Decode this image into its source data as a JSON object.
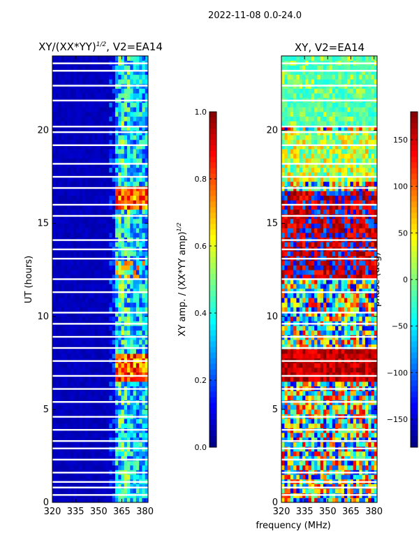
{
  "figure": {
    "suptitle": "2022-11-08 0.0-24.0",
    "shared_xlabel": "frequency (MHz)"
  },
  "chart_data": [
    {
      "type": "heatmap",
      "title_main": "XY/(XX*YY)",
      "title_exp": "1/2",
      "title_tail": ", V2=EA14",
      "ylabel": "UT (hours)",
      "xlim": [
        320,
        382
      ],
      "ylim": [
        0,
        24
      ],
      "xticks": [
        320,
        335,
        350,
        365,
        380
      ],
      "yticks": [
        0,
        5,
        10,
        15,
        20
      ],
      "colorbar": {
        "label_main": "XY amp. / (XX*YY amp)",
        "label_exp": "1/2",
        "range": [
          0,
          1
        ],
        "ticks": [
          "0.0",
          "0.2",
          "0.4",
          "0.6",
          "0.8",
          "1.0"
        ],
        "tick_values": [
          0,
          0.2,
          0.4,
          0.6,
          0.8,
          1.0
        ],
        "colormap": "jet"
      },
      "description": "Normalized XY amplitude vs frequency and UT; mostly low (~0.05) with elevated values in 360-382 MHz band and strong bursts near 16.5 h and 7 h.",
      "rows": 96,
      "cols": 32,
      "flagged_hours": [
        0.4,
        0.8,
        1.1,
        1.6,
        2.3,
        2.9,
        3.3,
        3.9,
        4.6,
        5.4,
        6.1,
        6.8,
        7.6,
        8.3,
        8.9,
        9.6,
        10.2,
        11.3,
        12.0,
        13.1,
        13.6,
        14.1,
        15.4,
        16.0,
        16.9,
        17.5,
        18.2,
        19.2,
        19.9,
        20.2,
        21.6,
        22.4,
        23.2,
        23.6
      ]
    },
    {
      "type": "heatmap",
      "title": "XY, V2=EA14",
      "ylabel": "",
      "xlim": [
        320,
        382
      ],
      "ylim": [
        0,
        24
      ],
      "xticks": [
        320,
        335,
        350,
        365,
        380
      ],
      "yticks": [
        0,
        5,
        10,
        15,
        20
      ],
      "colorbar": {
        "label": "phase (deg)",
        "range": [
          -180,
          180
        ],
        "ticks": [
          "150",
          "100",
          "50",
          "0",
          "−50",
          "−100",
          "−150"
        ],
        "tick_values": [
          150,
          100,
          50,
          0,
          -50,
          -100,
          -150
        ],
        "colormap": "jet"
      },
      "description": "XY phase vs frequency and UT; noisy phases with coherent high-phase (~150 deg) regions around 6.5-8 h and 12-16 h.",
      "rows": 96,
      "cols": 32,
      "flagged_hours": [
        0.4,
        0.8,
        1.1,
        1.6,
        2.3,
        2.9,
        3.3,
        3.9,
        4.6,
        5.4,
        6.1,
        6.8,
        7.6,
        8.3,
        8.9,
        9.6,
        10.2,
        11.3,
        12.0,
        13.1,
        13.6,
        14.1,
        15.4,
        16.0,
        16.9,
        17.5,
        18.2,
        19.2,
        19.9,
        20.2,
        21.6,
        22.4,
        23.2,
        23.6
      ]
    }
  ]
}
